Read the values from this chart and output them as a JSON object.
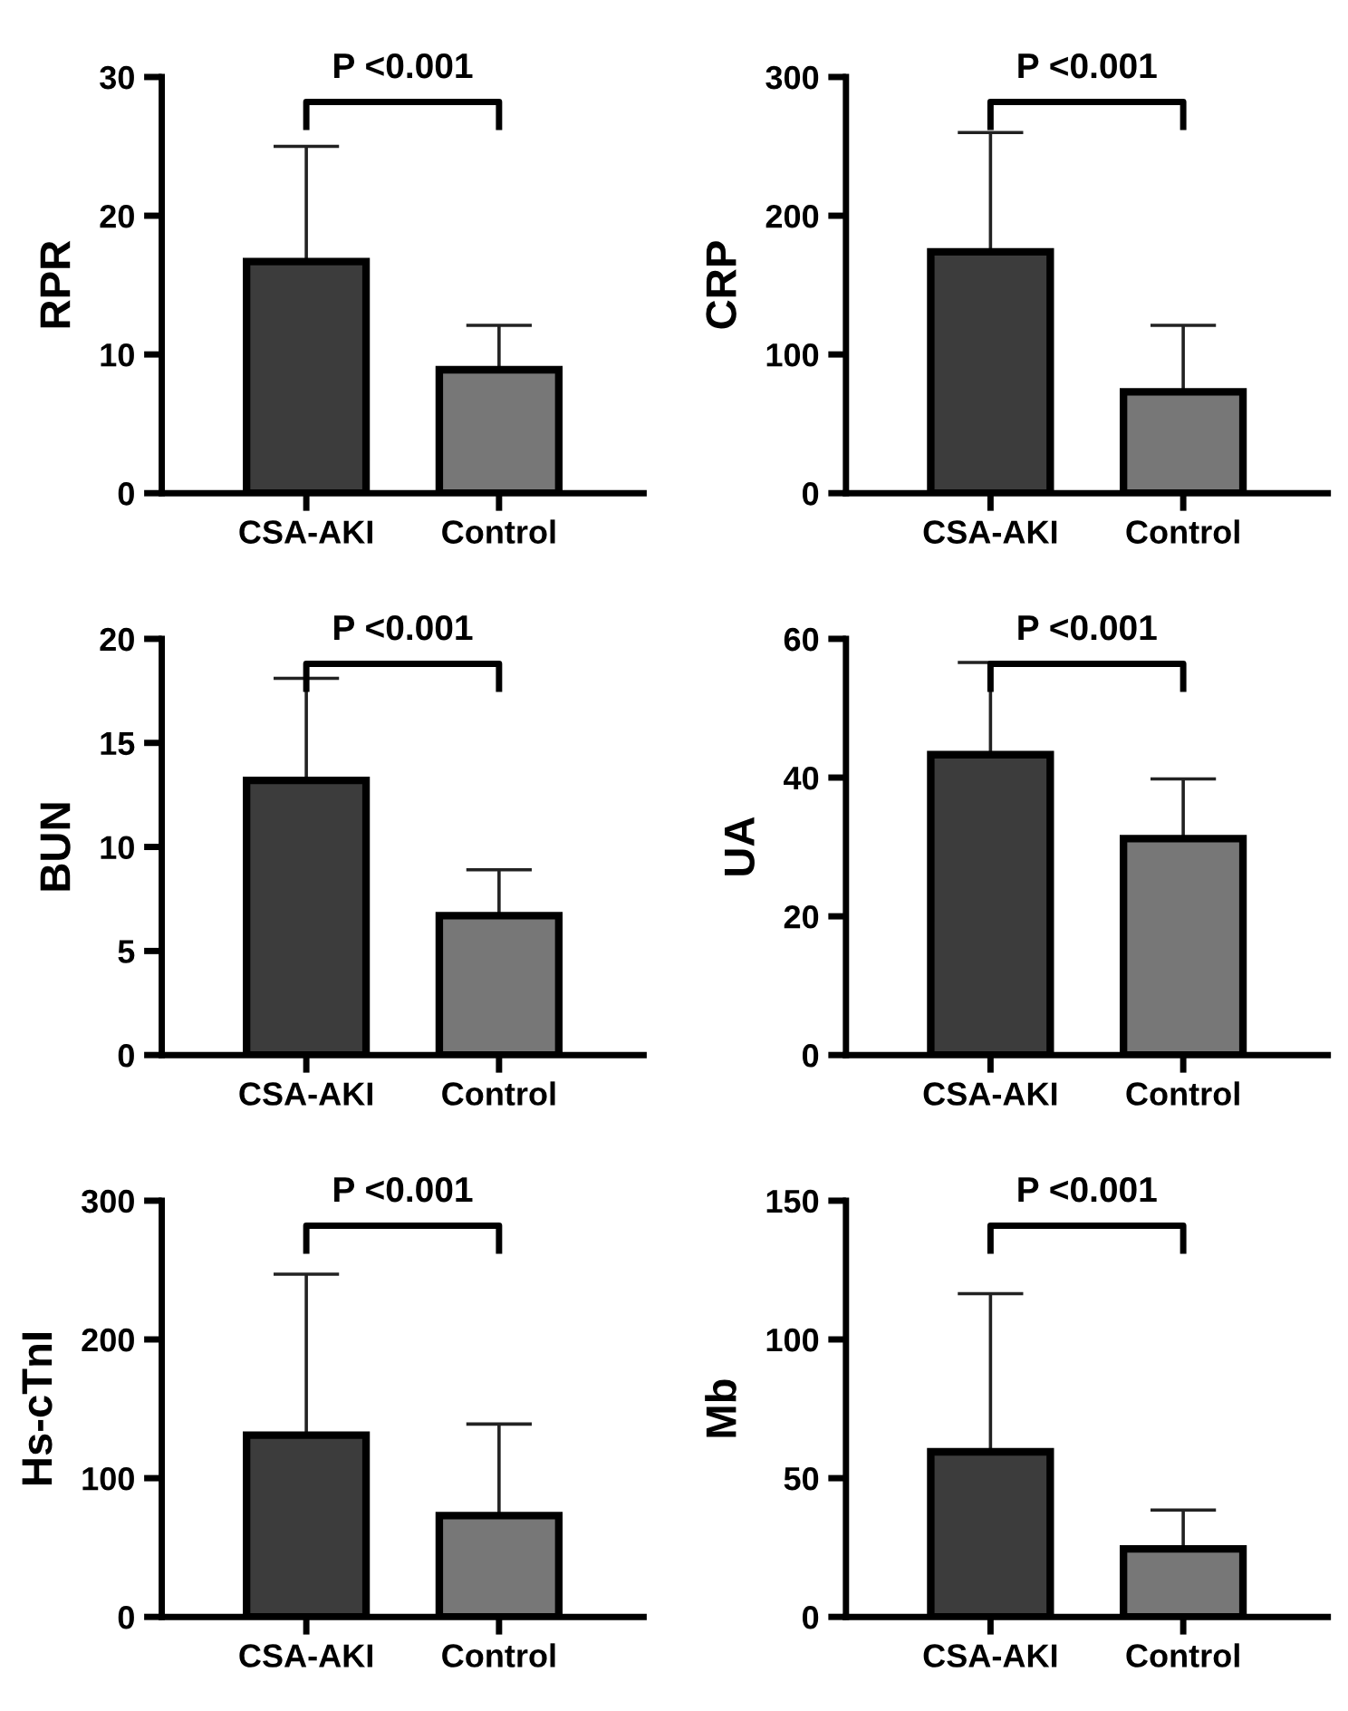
{
  "chart_data": [
    {
      "type": "bar",
      "ylabel": "RPR",
      "categories": [
        "CSA-AKI",
        "Control"
      ],
      "values": [
        16.7,
        8.9
      ],
      "colors": [
        "#3c3c3c",
        "#777777"
      ],
      "errors": [
        [
          16.7,
          25.0
        ],
        [
          8.9,
          12.1
        ]
      ],
      "ylim": [
        0,
        30
      ],
      "yticks": [
        0,
        10,
        20,
        30
      ],
      "annotations": [
        "P <0.001"
      ],
      "grid": false
    },
    {
      "type": "bar",
      "ylabel": "CRP",
      "categories": [
        "CSA-AKI",
        "Control"
      ],
      "values": [
        174,
        73
      ],
      "colors": [
        "#3c3c3c",
        "#777777"
      ],
      "errors": [
        [
          174,
          260
        ],
        [
          73,
          121
        ]
      ],
      "ylim": [
        0,
        300
      ],
      "yticks": [
        0,
        100,
        200,
        300
      ],
      "annotations": [
        "P <0.001"
      ],
      "grid": false
    },
    {
      "type": "bar",
      "ylabel": "BUN",
      "categories": [
        "CSA-AKI",
        "Control"
      ],
      "values": [
        13.2,
        6.7
      ],
      "colors": [
        "#3c3c3c",
        "#777777"
      ],
      "errors": [
        [
          13.2,
          18.1
        ],
        [
          6.7,
          8.9
        ]
      ],
      "ylim": [
        0,
        20
      ],
      "yticks": [
        0,
        5,
        10,
        15,
        20
      ],
      "annotations": [
        "P <0.001"
      ],
      "grid": false
    },
    {
      "type": "bar",
      "ylabel": "UA",
      "categories": [
        "CSA-AKI",
        "Control"
      ],
      "values": [
        43.3,
        31.2
      ],
      "colors": [
        "#3c3c3c",
        "#777777"
      ],
      "errors": [
        [
          43.3,
          56.6
        ],
        [
          31.2,
          39.8
        ]
      ],
      "ylim": [
        0,
        60
      ],
      "yticks": [
        0,
        20,
        40,
        60
      ],
      "annotations": [
        "P <0.001"
      ],
      "grid": false
    },
    {
      "type": "bar",
      "ylabel": "Hs-cTnI",
      "categories": [
        "CSA-AKI",
        "Control"
      ],
      "values": [
        131,
        73
      ],
      "colors": [
        "#3c3c3c",
        "#777777"
      ],
      "errors": [
        [
          131,
          247
        ],
        [
          73,
          139
        ]
      ],
      "ylim": [
        0,
        300
      ],
      "yticks": [
        0,
        100,
        200,
        300
      ],
      "annotations": [
        "P <0.001"
      ],
      "grid": false
    },
    {
      "type": "bar",
      "ylabel": "Mb",
      "categories": [
        "CSA-AKI",
        "Control"
      ],
      "values": [
        59.5,
        24.5
      ],
      "colors": [
        "#3c3c3c",
        "#777777"
      ],
      "errors": [
        [
          59.5,
          116.5
        ],
        [
          24.5,
          38.5
        ]
      ],
      "ylim": [
        0,
        150
      ],
      "yticks": [
        0,
        50,
        100,
        150
      ],
      "annotations": [
        "P <0.001"
      ],
      "grid": false
    }
  ]
}
